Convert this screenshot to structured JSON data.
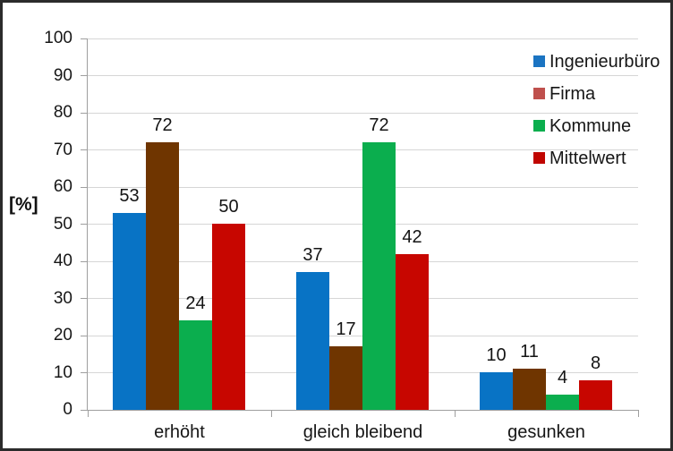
{
  "chart_data": {
    "type": "bar",
    "title": "",
    "ylabel": "[%]",
    "xlabel": "",
    "ylim": [
      0,
      100
    ],
    "ytick_step": 10,
    "yticks": [
      0,
      10,
      20,
      30,
      40,
      50,
      60,
      70,
      80,
      90,
      100
    ],
    "categories": [
      "erhöht",
      "gleich bleibend",
      "gesunken"
    ],
    "series": [
      {
        "name": "Ingenieurbüro",
        "bar_color": "#0873C5",
        "legend_color": "#1B74C2",
        "values": [
          53,
          37,
          10
        ]
      },
      {
        "name": "Firma",
        "bar_color": "#6F3500",
        "legend_color": "#BF504D",
        "values": [
          72,
          17,
          11
        ]
      },
      {
        "name": "Kommune",
        "bar_color": "#0BAE4E",
        "legend_color": "#0BAE4E",
        "values": [
          24,
          72,
          4
        ]
      },
      {
        "name": "Mittelwert",
        "bar_color": "#C70600",
        "legend_color": "#C00500",
        "values": [
          50,
          42,
          8
        ]
      }
    ],
    "data_labels": true,
    "grid": true,
    "legend_position": "inside-top-right"
  },
  "style": {
    "gridline_color": "#d6d6d6",
    "axis_color": "#9f9f9f",
    "text_color": "#161616",
    "background": "#ffffff",
    "frame_border": "#2b2b2b"
  }
}
